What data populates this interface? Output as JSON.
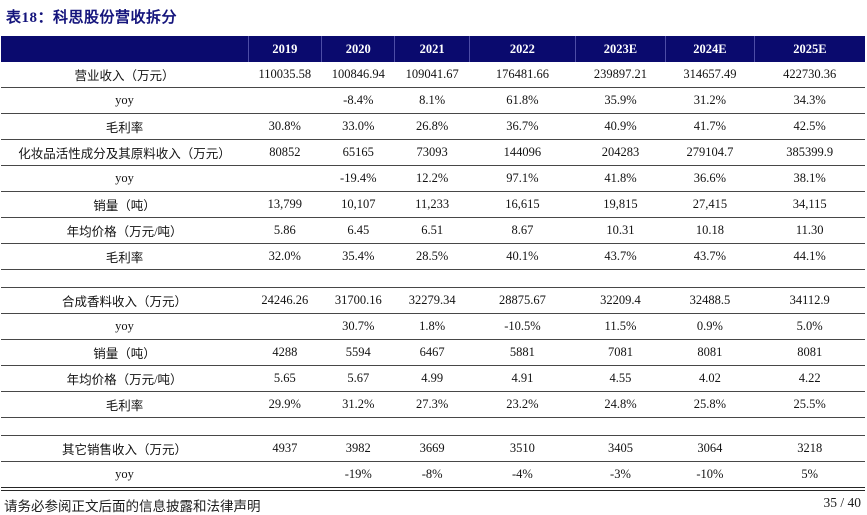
{
  "title": "表18：科思股份营收拆分",
  "colors": {
    "header_navy": "#0a0a6e",
    "title_navy": "#14147c",
    "rule_gray": "#474747"
  },
  "table": {
    "header": [
      "",
      "2019",
      "2020",
      "2021",
      "2022",
      "2023E",
      "2024E",
      "2025E"
    ],
    "rows": [
      {
        "label": "营业收入（万元）",
        "values": [
          "110035.58",
          "100846.94",
          "109041.67",
          "176481.66",
          "239897.21",
          "314657.49",
          "422730.36"
        ]
      },
      {
        "label": "yoy",
        "values": [
          "",
          "-8.4%",
          "8.1%",
          "61.8%",
          "35.9%",
          "31.2%",
          "34.3%"
        ]
      },
      {
        "label": "毛利率",
        "values": [
          "30.8%",
          "33.0%",
          "26.8%",
          "36.7%",
          "40.9%",
          "41.7%",
          "42.5%"
        ]
      },
      {
        "label": "化妆品活性成分及其原料收入（万元）",
        "values": [
          "80852",
          "65165",
          "73093",
          "144096",
          "204283",
          "279104.7",
          "385399.9"
        ]
      },
      {
        "label": "yoy",
        "values": [
          "",
          "-19.4%",
          "12.2%",
          "97.1%",
          "41.8%",
          "36.6%",
          "38.1%"
        ]
      },
      {
        "label": "销量（吨）",
        "values": [
          "13,799",
          "10,107",
          "11,233",
          "16,615",
          "19,815",
          "27,415",
          "34,115"
        ]
      },
      {
        "label": "年均价格（万元/吨）",
        "values": [
          "5.86",
          "6.45",
          "6.51",
          "8.67",
          "10.31",
          "10.18",
          "11.30"
        ]
      },
      {
        "label": "毛利率",
        "values": [
          "32.0%",
          "35.4%",
          "28.5%",
          "40.1%",
          "43.7%",
          "43.7%",
          "44.1%"
        ]
      },
      {
        "spacer": true
      },
      {
        "label": "合成香料收入（万元）",
        "values": [
          "24246.26",
          "31700.16",
          "32279.34",
          "28875.67",
          "32209.4",
          "32488.5",
          "34112.9"
        ]
      },
      {
        "label": "yoy",
        "values": [
          "",
          "30.7%",
          "1.8%",
          "-10.5%",
          "11.5%",
          "0.9%",
          "5.0%"
        ]
      },
      {
        "label": "销量（吨）",
        "values": [
          "4288",
          "5594",
          "6467",
          "5881",
          "7081",
          "8081",
          "8081"
        ]
      },
      {
        "label": "年均价格（万元/吨）",
        "values": [
          "5.65",
          "5.67",
          "4.99",
          "4.91",
          "4.55",
          "4.02",
          "4.22"
        ]
      },
      {
        "label": "毛利率",
        "values": [
          "29.9%",
          "31.2%",
          "27.3%",
          "23.2%",
          "24.8%",
          "25.8%",
          "25.5%"
        ]
      },
      {
        "spacer": true
      },
      {
        "label": "其它销售收入（万元）",
        "values": [
          "4937",
          "3982",
          "3669",
          "3510",
          "3405",
          "3064",
          "3218"
        ]
      },
      {
        "label": "yoy",
        "values": [
          "",
          "-19%",
          "-8%",
          "-4%",
          "-3%",
          "-10%",
          "5%"
        ]
      }
    ],
    "column_widths_pct": [
      28.6,
      8.5,
      8.5,
      8.6,
      12.3,
      10.4,
      10.3,
      12.8
    ]
  },
  "footer": {
    "disclaimer": "请务必参阅正文后面的信息披露和法律声明",
    "page": "35 / 40"
  }
}
